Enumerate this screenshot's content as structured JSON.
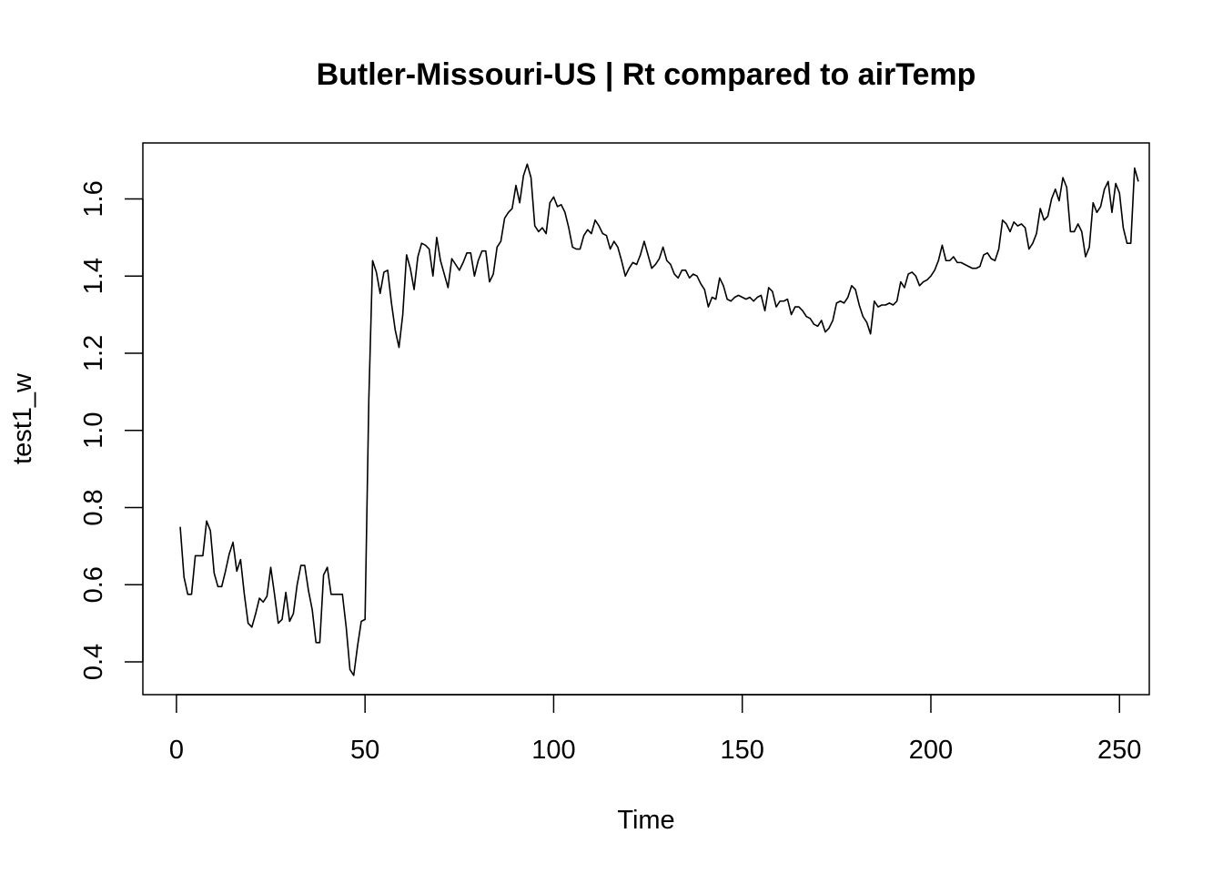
{
  "chart_data": {
    "type": "line",
    "title": "Butler-Missouri-US | Rt compared to airTemp",
    "xlabel": "Time",
    "ylabel": "test1_w",
    "xlim": [
      -8.9,
      257.9
    ],
    "ylim": [
      0.315,
      1.745
    ],
    "x_ticks": [
      0,
      50,
      100,
      150,
      200,
      250
    ],
    "x_tick_labels": [
      "0",
      "50",
      "100",
      "150",
      "200",
      "250"
    ],
    "y_ticks": [
      0.4,
      0.6,
      0.8,
      1.0,
      1.2,
      1.4,
      1.6
    ],
    "y_tick_labels": [
      "0.4",
      "0.6",
      "0.8",
      "1.0",
      "1.2",
      "1.4",
      "1.6"
    ],
    "grid": false,
    "series": [
      {
        "x_start": 1,
        "x_step": 1,
        "values": [
          0.75,
          0.62,
          0.575,
          0.575,
          0.675,
          0.675,
          0.675,
          0.765,
          0.74,
          0.63,
          0.595,
          0.595,
          0.635,
          0.68,
          0.71,
          0.635,
          0.665,
          0.575,
          0.5,
          0.49,
          0.525,
          0.565,
          0.555,
          0.57,
          0.645,
          0.575,
          0.5,
          0.51,
          0.58,
          0.505,
          0.525,
          0.6,
          0.65,
          0.65,
          0.585,
          0.535,
          0.45,
          0.45,
          0.625,
          0.645,
          0.575,
          0.575,
          0.575,
          0.575,
          0.49,
          0.38,
          0.365,
          0.44,
          0.505,
          0.51,
          1.08,
          1.44,
          1.41,
          1.355,
          1.41,
          1.415,
          1.33,
          1.26,
          1.215,
          1.3,
          1.455,
          1.42,
          1.365,
          1.45,
          1.485,
          1.48,
          1.47,
          1.4,
          1.5,
          1.44,
          1.405,
          1.37,
          1.445,
          1.43,
          1.415,
          1.435,
          1.46,
          1.46,
          1.4,
          1.44,
          1.465,
          1.465,
          1.385,
          1.405,
          1.475,
          1.49,
          1.55,
          1.565,
          1.575,
          1.635,
          1.59,
          1.66,
          1.69,
          1.655,
          1.53,
          1.515,
          1.525,
          1.51,
          1.59,
          1.605,
          1.58,
          1.585,
          1.565,
          1.525,
          1.475,
          1.47,
          1.47,
          1.505,
          1.52,
          1.51,
          1.545,
          1.53,
          1.51,
          1.505,
          1.47,
          1.49,
          1.475,
          1.44,
          1.4,
          1.42,
          1.435,
          1.43,
          1.455,
          1.49,
          1.455,
          1.42,
          1.43,
          1.445,
          1.475,
          1.44,
          1.43,
          1.405,
          1.395,
          1.415,
          1.415,
          1.395,
          1.405,
          1.4,
          1.38,
          1.365,
          1.32,
          1.345,
          1.34,
          1.395,
          1.375,
          1.34,
          1.335,
          1.345,
          1.35,
          1.345,
          1.34,
          1.345,
          1.335,
          1.345,
          1.35,
          1.31,
          1.37,
          1.36,
          1.32,
          1.335,
          1.335,
          1.34,
          1.3,
          1.32,
          1.32,
          1.31,
          1.295,
          1.29,
          1.275,
          1.27,
          1.285,
          1.255,
          1.265,
          1.285,
          1.33,
          1.335,
          1.33,
          1.345,
          1.375,
          1.365,
          1.325,
          1.295,
          1.28,
          1.25,
          1.335,
          1.32,
          1.325,
          1.325,
          1.33,
          1.325,
          1.335,
          1.385,
          1.37,
          1.405,
          1.41,
          1.4,
          1.375,
          1.385,
          1.39,
          1.4,
          1.415,
          1.44,
          1.48,
          1.44,
          1.44,
          1.45,
          1.435,
          1.435,
          1.43,
          1.425,
          1.42,
          1.42,
          1.425,
          1.455,
          1.46,
          1.445,
          1.44,
          1.47,
          1.545,
          1.535,
          1.515,
          1.54,
          1.53,
          1.535,
          1.525,
          1.47,
          1.485,
          1.51,
          1.575,
          1.545,
          1.555,
          1.6,
          1.625,
          1.595,
          1.655,
          1.63,
          1.515,
          1.515,
          1.535,
          1.515,
          1.45,
          1.475,
          1.59,
          1.565,
          1.58,
          1.625,
          1.645,
          1.565,
          1.64,
          1.615,
          1.525,
          1.485,
          1.485,
          1.68,
          1.645
        ]
      }
    ]
  }
}
